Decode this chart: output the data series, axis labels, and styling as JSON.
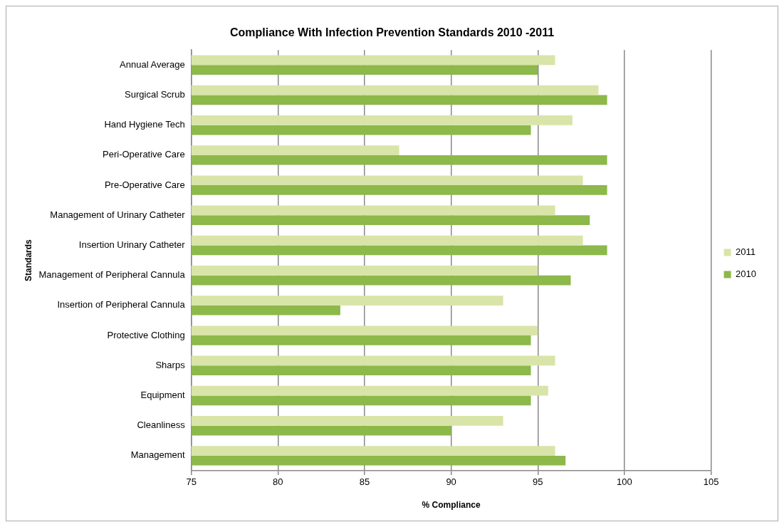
{
  "chart_data": {
    "type": "bar",
    "orientation": "horizontal",
    "title": "Compliance With Infection Prevention Standards 2010 -2011",
    "xlabel": "% Compliance",
    "ylabel": "Standards",
    "categories": [
      "Annual Average",
      "Surgical Scrub",
      "Hand Hygiene Tech",
      "Peri-Operative Care",
      "Pre-Operative Care",
      "Management of Urinary Catheter",
      "Insertion Urinary Catheter",
      "Management of Peripheral Cannula",
      "Insertion of Peripheral Cannula",
      "Protective Clothing",
      "Sharps",
      "Equipment",
      "Cleanliness",
      "Management"
    ],
    "series": [
      {
        "name": "2011",
        "color": "#d9e4a8",
        "values": [
          96,
          98.5,
          97,
          87,
          97.6,
          96,
          97.6,
          95,
          93,
          95,
          96,
          95.6,
          93,
          96
        ]
      },
      {
        "name": "2010",
        "color": "#8db84a",
        "values": [
          95,
          99,
          94.6,
          99,
          99,
          98,
          99,
          96.9,
          83.6,
          94.6,
          94.6,
          94.6,
          90,
          96.6
        ]
      }
    ],
    "xlim": [
      75,
      105
    ],
    "xticks": [
      75,
      80,
      85,
      90,
      95,
      100,
      105
    ],
    "grid": "x",
    "legend": "right"
  }
}
